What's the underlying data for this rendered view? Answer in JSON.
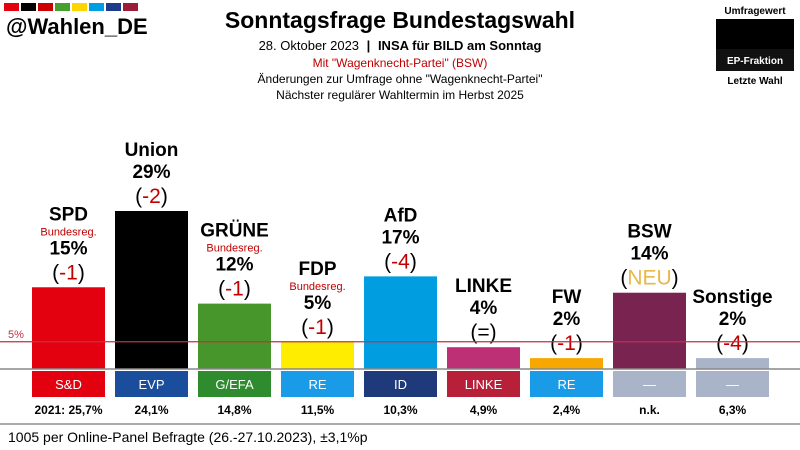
{
  "header": {
    "handle": "@Wahlen_DE",
    "flag_colors": [
      "#e3000f",
      "#000000",
      "#cc0000",
      "#46a02f",
      "#ffd500",
      "#009fe3",
      "#1e3a8a",
      "#9b1d3a"
    ],
    "title": "Sonntagsfrage Bundestagswahl",
    "date": "28. Oktober 2023",
    "separator": "|",
    "source": "INSA für BILD am Sonntag",
    "note_red": "Mit \"Wagenknecht-Partei\" (BSW)",
    "note_changes": "Änderungen zur Umfrage ohne \"Wagenknecht-Partei\"",
    "note_next": "Nächster regulärer Wahltermin im Herbst 2025"
  },
  "legend": {
    "value_label": "Umfragewert",
    "fraction_label": "EP-Fraktion",
    "last_label": "Letzte Wahl"
  },
  "threshold_label": "5%",
  "footer": "1005 per Online-Panel Befragte (26.-27.10.2023), ±3,1%p",
  "chart_data": {
    "type": "bar",
    "title": "Sonntagsfrage Bundestagswahl",
    "categories": [
      "SPD",
      "Union",
      "GRÜNE",
      "FDP",
      "AfD",
      "LINKE",
      "FW",
      "BSW",
      "Sonstige"
    ],
    "values": [
      15,
      29,
      12,
      5,
      17,
      4,
      2,
      14,
      2
    ],
    "value_labels": [
      "15%",
      "29%",
      "12%",
      "5%",
      "17%",
      "4%",
      "2%",
      "14%",
      "2%"
    ],
    "changes": [
      "-1",
      "-2",
      "-1",
      "-1",
      "-4",
      "=",
      "-1",
      "NEU",
      "-4"
    ],
    "change_colors": [
      "#c00000",
      "#c00000",
      "#c00000",
      "#c00000",
      "#c00000",
      "#000000",
      "#c00000",
      "#e8b84b",
      "#c00000"
    ],
    "government_tag": "Bundesreg.",
    "in_government": [
      true,
      false,
      true,
      true,
      false,
      false,
      false,
      false,
      false
    ],
    "colors": [
      "#e3000f",
      "#000000",
      "#46962b",
      "#ffed00",
      "#009ee0",
      "#be3075",
      "#f7a800",
      "#792350",
      "#a9b4c8"
    ],
    "ep_fractions": [
      "S&D",
      "EVP",
      "G/EFA",
      "RE",
      "ID",
      "LINKE",
      "RE",
      "—",
      "—"
    ],
    "ep_fraction_colors": [
      "#e3000f",
      "#1a4d9c",
      "#2e8b2e",
      "#1a9be8",
      "#1e3a7a",
      "#b8203a",
      "#1a9be8",
      "#a9b4c8",
      "#a9b4c8"
    ],
    "last_election": [
      "2021: 25,7%",
      "24,1%",
      "14,8%",
      "11,5%",
      "10,3%",
      "4,9%",
      "2,4%",
      "n.k.",
      "6,3%"
    ],
    "threshold": 5,
    "ylim": [
      0,
      29
    ]
  }
}
